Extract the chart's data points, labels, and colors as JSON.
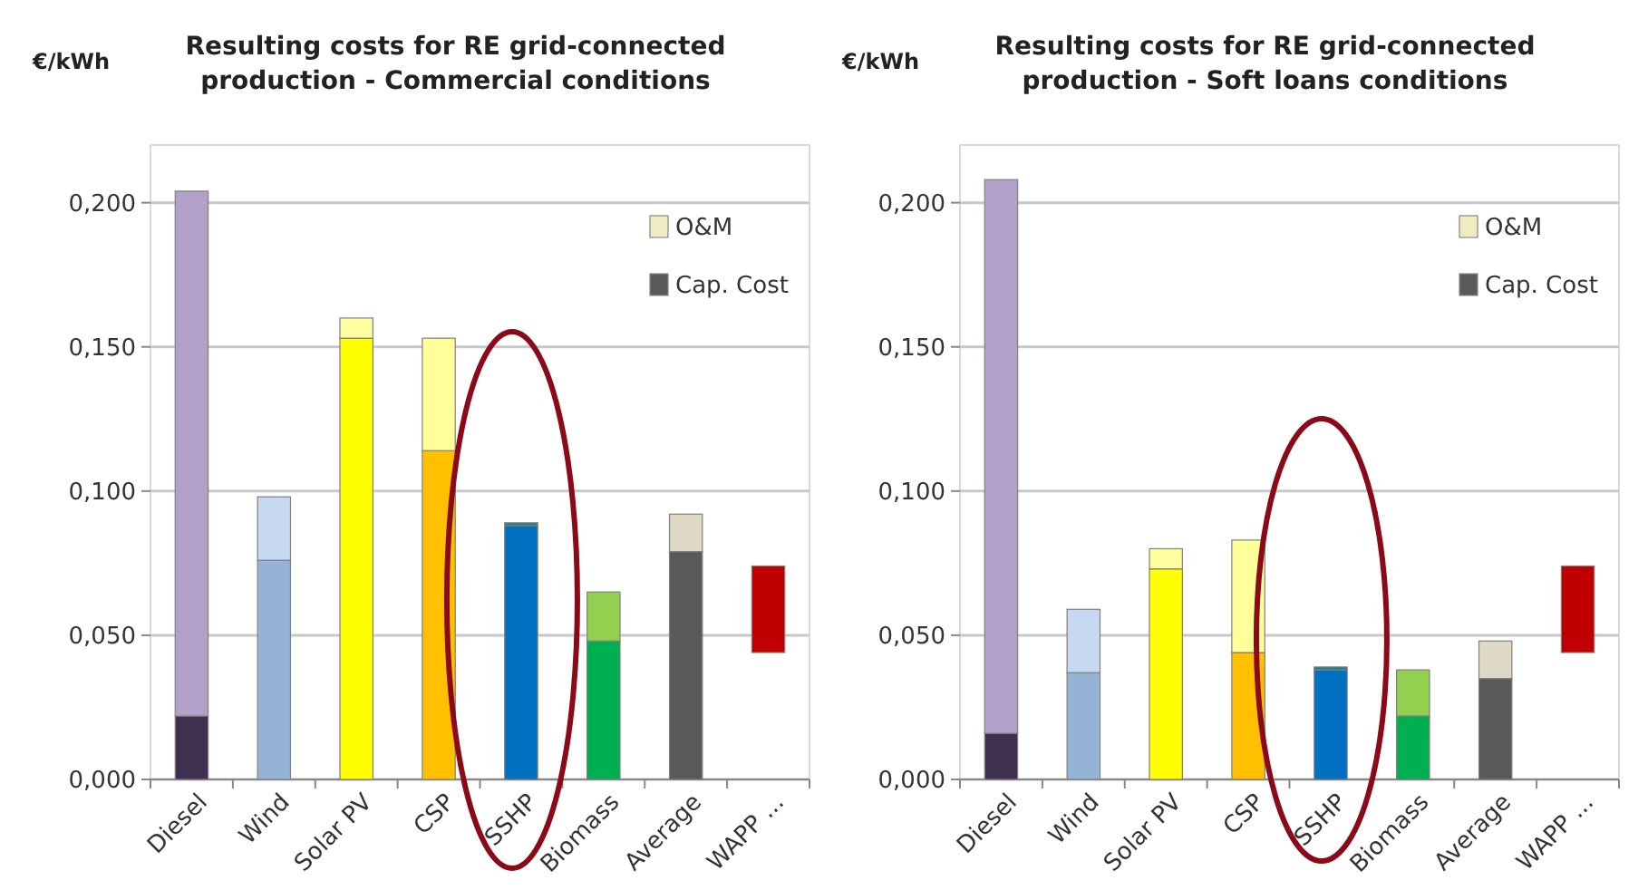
{
  "chart_data": [
    {
      "type": "bar",
      "title": "Resulting costs for RE grid-connected production  - Commercial conditions",
      "ylabel": "€/kWh",
      "categories": [
        "Diesel",
        "Wind",
        "Solar PV",
        "CSP",
        "SSHP",
        "Biomass",
        "Average",
        "WAPP ..."
      ],
      "stacked": true,
      "ylim": [
        0,
        0.22
      ],
      "yticks": [
        {
          "value": 0,
          "label": "0,000"
        },
        {
          "value": 0.05,
          "label": "0,050"
        },
        {
          "value": 0.1,
          "label": "0,100"
        },
        {
          "value": 0.15,
          "label": "0,150"
        },
        {
          "value": 0.2,
          "label": "0,200"
        }
      ],
      "grid": "y",
      "legend": "top right",
      "series": [
        {
          "name": "Cap. Cost",
          "color": "#595959",
          "colors": [
            "#403050",
            "#95b3d7",
            "#ffff00",
            "#ffc000",
            "#0070c0",
            "#00b050",
            "#595959",
            null
          ],
          "values": [
            0.022,
            0.076,
            0.153,
            0.114,
            0.088,
            0.048,
            0.079,
            null
          ]
        },
        {
          "name": "O&M",
          "color": "#eeecc0",
          "colors": [
            "#b3a0c8",
            "#c6d9f1",
            "#ffffa0",
            "#ffff99",
            "#1f7f8f",
            "#92d050",
            "#ddd9c4",
            null
          ],
          "values": [
            0.182,
            0.022,
            0.007,
            0.039,
            0.001,
            0.017,
            0.013,
            null
          ]
        },
        {
          "color": "#c00000",
          "values": [
            null,
            null,
            null,
            null,
            null,
            null,
            null,
            0.03
          ],
          "base": [
            null,
            null,
            null,
            null,
            null,
            null,
            null,
            0.044
          ]
        }
      ]
    },
    {
      "type": "bar",
      "title": "Resulting costs for RE grid-connected production - Soft loans conditions",
      "ylabel": "€/kWh",
      "categories": [
        "Diesel",
        "Wind",
        "Solar PV",
        "CSP",
        "SSHP",
        "Biomass",
        "Average",
        "WAPP ..."
      ],
      "stacked": true,
      "ylim": [
        0,
        0.22
      ],
      "yticks": [
        {
          "value": 0,
          "label": "0,000"
        },
        {
          "value": 0.05,
          "label": "0,050"
        },
        {
          "value": 0.1,
          "label": "0,100"
        },
        {
          "value": 0.15,
          "label": "0,150"
        },
        {
          "value": 0.2,
          "label": "0,200"
        }
      ],
      "grid": "y",
      "legend": "top right",
      "series": [
        {
          "name": "Cap. Cost",
          "color": "#595959",
          "colors": [
            "#403050",
            "#95b3d7",
            "#ffff00",
            "#ffc000",
            "#0070c0",
            "#00b050",
            "#595959",
            null
          ],
          "values": [
            0.016,
            0.037,
            0.073,
            0.044,
            0.038,
            0.022,
            0.035,
            null
          ]
        },
        {
          "name": "O&M",
          "color": "#eeecc0",
          "colors": [
            "#b3a0c8",
            "#c6d9f1",
            "#ffffa0",
            "#ffff99",
            "#1f7f8f",
            "#92d050",
            "#ddd9c4",
            null
          ],
          "values": [
            0.192,
            0.022,
            0.007,
            0.039,
            0.001,
            0.016,
            0.013,
            null
          ]
        },
        {
          "color": "#c00000",
          "values": [
            null,
            null,
            null,
            null,
            null,
            null,
            null,
            0.03
          ],
          "base": [
            null,
            null,
            null,
            null,
            null,
            null,
            null,
            0.044
          ]
        }
      ]
    }
  ]
}
